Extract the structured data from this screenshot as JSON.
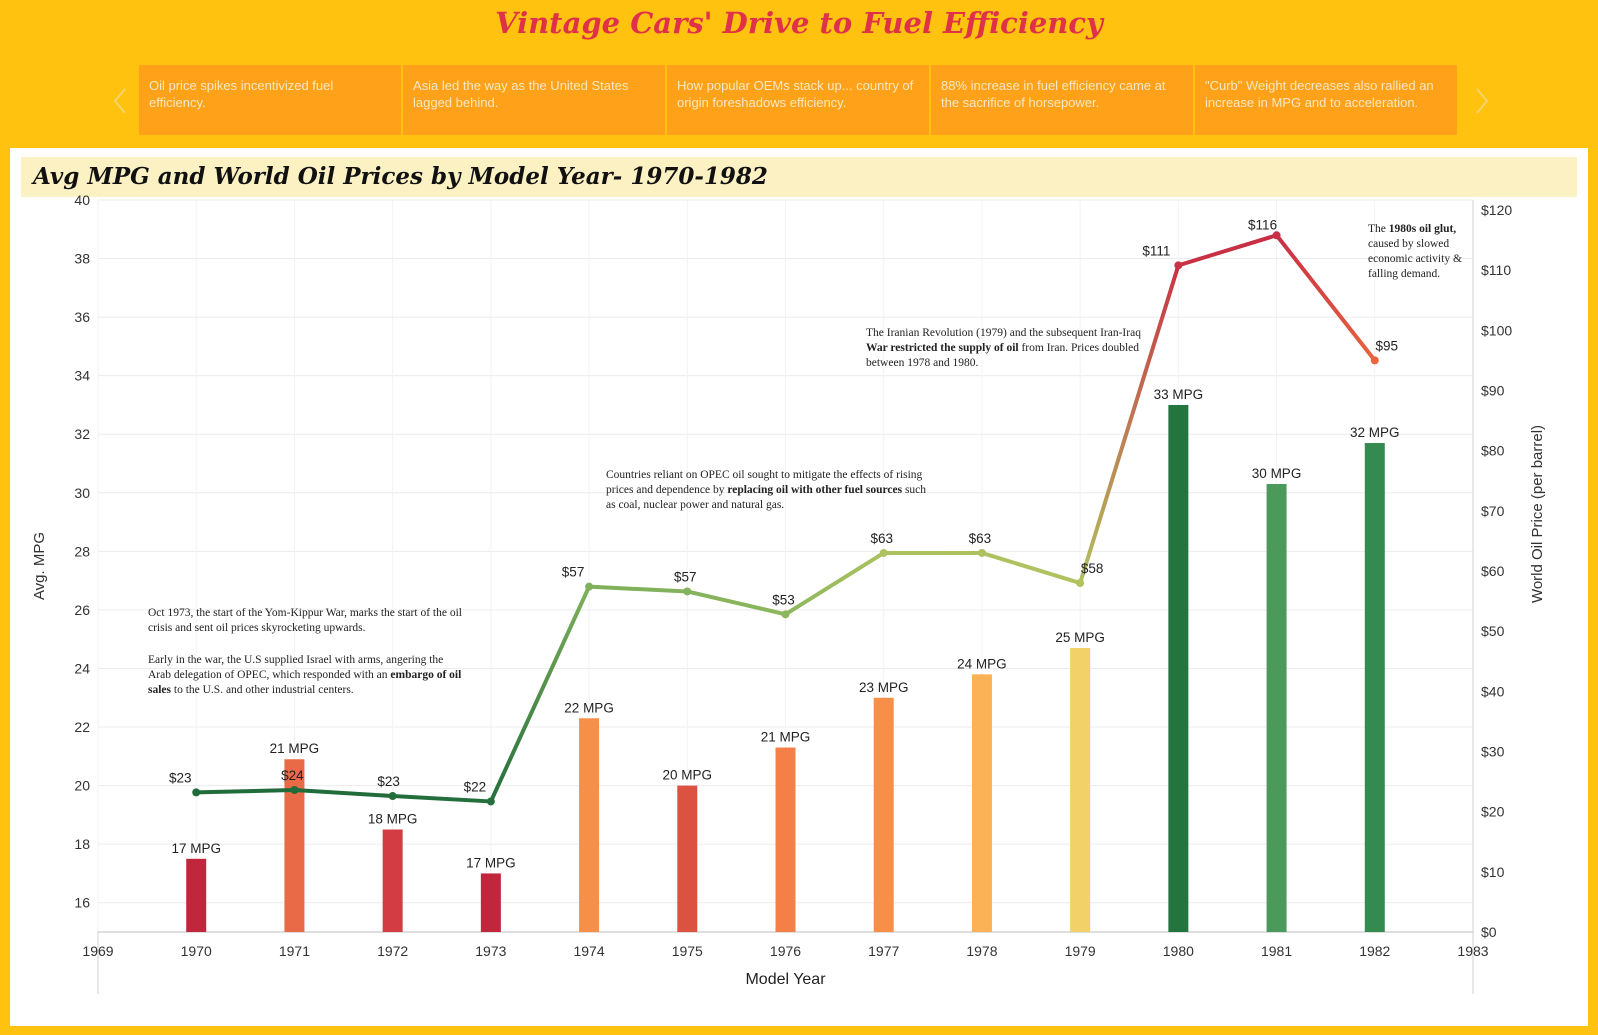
{
  "title": "Vintage Cars' Drive to Fuel Efficiency",
  "tabs": [
    {
      "label": "Oil price spikes incentivized fuel efficiency.",
      "active": true
    },
    {
      "label": "Asia led the way as the United States lagged behind.",
      "active": false
    },
    {
      "label": "How popular OEMs stack up... country of origin foreshadows efficiency.",
      "active": false
    },
    {
      "label": "88% increase in fuel efficiency came at the sacrifice of horsepower.",
      "active": false
    },
    {
      "label": "\"Curb\" Weight decreases also rallied an increase in MPG and to acceleration.",
      "active": false
    }
  ],
  "annotations": {
    "yom_kippur": "Oct 1973, the start of the Yom-Kippur War, marks the start of the oil crisis  and sent oil prices skyrocketing upwards.",
    "embargo_pre": "Early in the war, the U.S supplied Israel with arms, angering the Arab delegation of OPEC,  which responded with an ",
    "embargo_bold": "embargo of oil sales",
    "embargo_post": " to the U.S. and other industrial centers.",
    "opec_pre": "Countries reliant on OPEC oil sought to mitigate the effects of rising prices and dependence by ",
    "opec_bold": "replacing oil with other fuel sources",
    "opec_post": " such as coal, nuclear power and natural gas.",
    "iran_pre": "The Iranian Revolution (1979) and the subsequent Iran-Iraq ",
    "iran_bold": "War restricted the supply of oil",
    "iran_post": " from Iran.  Prices doubled between 1978 and 1980.",
    "glut_pre": "The ",
    "glut_bold": "1980s oil glut,",
    "glut_post": " caused by slowed economic activity & falling demand."
  },
  "chart_data": {
    "type": "bar+line",
    "title": "Avg MPG and World Oil Prices by Model Year- 1970-1982",
    "xlabel": "Model Year",
    "ylabel": "Avg. MPG",
    "y2label": "World Oil Price (per barrel)",
    "x_ticks": [
      1969,
      1970,
      1971,
      1972,
      1973,
      1974,
      1975,
      1976,
      1977,
      1978,
      1979,
      1980,
      1981,
      1982,
      1983
    ],
    "xlim": [
      1969,
      1983
    ],
    "ylim": [
      15,
      40
    ],
    "y_ticks": [
      16,
      18,
      20,
      22,
      24,
      26,
      28,
      30,
      32,
      34,
      36,
      38,
      40
    ],
    "y2lim": [
      0,
      120
    ],
    "y2_ticks": [
      0,
      10,
      20,
      30,
      40,
      50,
      60,
      70,
      80,
      90,
      100,
      110,
      120
    ],
    "y2_tick_prefix": "$",
    "grid": true,
    "series": [
      {
        "name": "Avg. MPG",
        "kind": "bar",
        "axis": "left",
        "x": [
          1970,
          1971,
          1972,
          1973,
          1974,
          1975,
          1976,
          1977,
          1978,
          1979,
          1980,
          1981,
          1982
        ],
        "values": [
          17.5,
          20.9,
          18.5,
          17.0,
          22.3,
          20.0,
          21.3,
          23.0,
          23.8,
          24.7,
          33.0,
          30.3,
          31.7
        ],
        "labels": [
          "17 MPG",
          "21 MPG",
          "18 MPG",
          "17 MPG",
          "22 MPG",
          "20 MPG",
          "21 MPG",
          "23 MPG",
          "24 MPG",
          "25 MPG",
          "33 MPG",
          "30 MPG",
          "32 MPG"
        ],
        "colors": [
          "#c0263c",
          "#e86a47",
          "#d23c42",
          "#c0263c",
          "#f68f47",
          "#db5241",
          "#f47f47",
          "#f88f49",
          "#fbb155",
          "#f3d169",
          "#23743f",
          "#4b9a5c",
          "#358a4f"
        ]
      },
      {
        "name": "World Oil Price",
        "kind": "line",
        "axis": "right",
        "x": [
          1970,
          1971,
          1972,
          1973,
          1974,
          1975,
          1976,
          1977,
          1978,
          1979,
          1980,
          1981,
          1982
        ],
        "values": [
          23.2,
          23.6,
          22.6,
          21.7,
          57.4,
          56.6,
          52.8,
          63.0,
          63.0,
          58.0,
          110.8,
          115.8,
          95.0
        ],
        "labels": [
          "$23",
          "$24",
          "$23",
          "$22",
          "$57",
          "$57",
          "$53",
          "$63",
          "$63",
          "$58",
          "$111",
          "$116",
          "$95"
        ],
        "colors": [
          "#1f6b3a",
          "#1f6b3a",
          "#226d3b",
          "#246f3c",
          "#7fb05b",
          "#84b25c",
          "#8db75d",
          "#acc15f",
          "#adc15f",
          "#b1c25f",
          "#c93245",
          "#c82e44",
          "#e8643e"
        ]
      }
    ]
  }
}
